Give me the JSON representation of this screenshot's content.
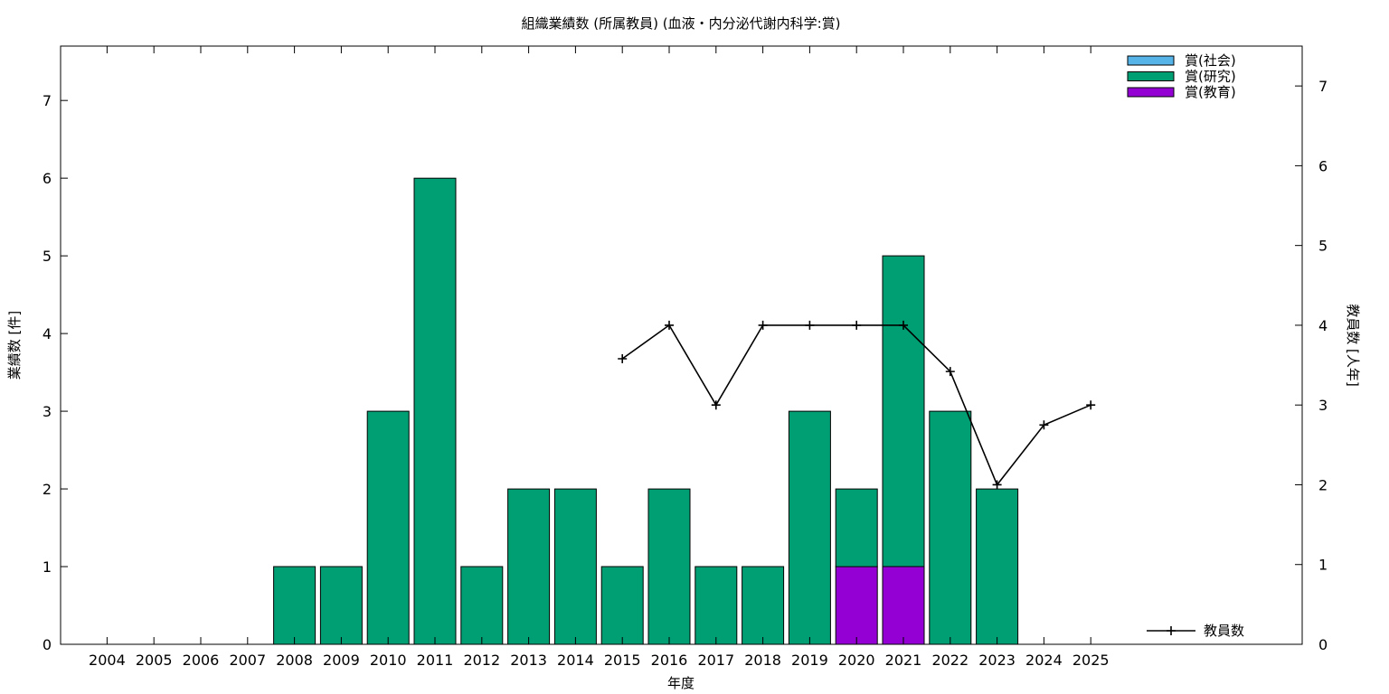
{
  "chart_data": {
    "type": "bar",
    "title": "組織業績数 (所属教員) (血液・内分泌代謝内科学:賞)",
    "xlabel": "年度",
    "ylabel": "業績数 [件]",
    "y2label": "教員数 [人年]",
    "categories": [
      "2004",
      "2005",
      "2006",
      "2007",
      "2008",
      "2009",
      "2010",
      "2011",
      "2012",
      "2013",
      "2014",
      "2015",
      "2016",
      "2017",
      "2018",
      "2019",
      "2020",
      "2021",
      "2022",
      "2023",
      "2024",
      "2025"
    ],
    "ylim": [
      0,
      7.7
    ],
    "y2lim": [
      0,
      7.5
    ],
    "yticks": [
      0,
      1,
      2,
      3,
      4,
      5,
      6,
      7
    ],
    "y2ticks": [
      0,
      1,
      2,
      3,
      4,
      5,
      6,
      7
    ],
    "stacked": true,
    "series": [
      {
        "name": "賞(教育)",
        "color": "#9400d3",
        "values": [
          0,
          0,
          0,
          0,
          0,
          0,
          0,
          0,
          0,
          0,
          0,
          0,
          0,
          0,
          0,
          0,
          1,
          1,
          0,
          0,
          0,
          0
        ]
      },
      {
        "name": "賞(研究)",
        "color": "#009e73",
        "values": [
          0,
          0,
          0,
          0,
          1,
          1,
          3,
          6,
          1,
          2,
          2,
          1,
          2,
          1,
          1,
          3,
          1,
          4,
          3,
          2,
          0,
          0
        ]
      },
      {
        "name": "賞(社会)",
        "color": "#56b4e9",
        "values": [
          0,
          0,
          0,
          0,
          0,
          0,
          0,
          0,
          0,
          0,
          0,
          0,
          0,
          0,
          0,
          0,
          0,
          0,
          0,
          0,
          0,
          0
        ]
      }
    ],
    "line_series": {
      "name": "教員数",
      "color": "#000000",
      "axis": "y2",
      "points": [
        {
          "x": "2015",
          "y": 3.58
        },
        {
          "x": "2016",
          "y": 4.0
        },
        {
          "x": "2017",
          "y": 3.0
        },
        {
          "x": "2018",
          "y": 4.0
        },
        {
          "x": "2019",
          "y": 4.0
        },
        {
          "x": "2020",
          "y": 4.0
        },
        {
          "x": "2021",
          "y": 4.0
        },
        {
          "x": "2022",
          "y": 3.42
        },
        {
          "x": "2023",
          "y": 2.0
        },
        {
          "x": "2024",
          "y": 2.75
        },
        {
          "x": "2025",
          "y": 3.0
        }
      ]
    },
    "legend_order": [
      "賞(社会)",
      "賞(研究)",
      "賞(教育)"
    ],
    "legend_position": "top-right",
    "line_legend_position": "bottom-right",
    "grid": false
  }
}
